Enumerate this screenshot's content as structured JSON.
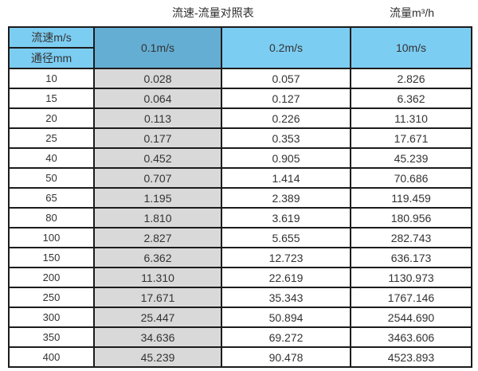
{
  "titles": {
    "left": "流速-流量对照表",
    "right": "流量m³/h"
  },
  "table": {
    "corner_top": "流速m/s",
    "corner_bottom": "通径mm",
    "columns": [
      "0.1m/s",
      "0.2m/s",
      "10m/s"
    ],
    "rows": [
      {
        "diameter": "10",
        "values": [
          "0.028",
          "0.057",
          "2.826"
        ]
      },
      {
        "diameter": "15",
        "values": [
          "0.064",
          "0.127",
          "6.362"
        ]
      },
      {
        "diameter": "20",
        "values": [
          "0.113",
          "0.226",
          "11.310"
        ]
      },
      {
        "diameter": "25",
        "values": [
          "0.177",
          "0.353",
          "17.671"
        ]
      },
      {
        "diameter": "40",
        "values": [
          "0.452",
          "0.905",
          "45.239"
        ]
      },
      {
        "diameter": "50",
        "values": [
          "0.707",
          "1.414",
          "70.686"
        ]
      },
      {
        "diameter": "65",
        "values": [
          "1.195",
          "2.389",
          "119.459"
        ]
      },
      {
        "diameter": "80",
        "values": [
          "1.810",
          "3.619",
          "180.956"
        ]
      },
      {
        "diameter": "100",
        "values": [
          "2.827",
          "5.655",
          "282.743"
        ]
      },
      {
        "diameter": "150",
        "values": [
          "6.362",
          "12.723",
          "636.173"
        ]
      },
      {
        "diameter": "200",
        "values": [
          "11.310",
          "22.619",
          "1130.973"
        ]
      },
      {
        "diameter": "250",
        "values": [
          "17.671",
          "35.343",
          "1767.146"
        ]
      },
      {
        "diameter": "300",
        "values": [
          "25.447",
          "50.894",
          "2544.690"
        ]
      },
      {
        "diameter": "350",
        "values": [
          "34.636",
          "69.272",
          "3463.606"
        ]
      },
      {
        "diameter": "400",
        "values": [
          "45.239",
          "90.478",
          "4523.893"
        ]
      }
    ]
  },
  "colors": {
    "header_light_blue": "#7ccdf2",
    "header_dark_blue": "#64aed3",
    "shaded_column_gray": "#d9d9d9",
    "border": "#1c1c1c",
    "text": "#333333"
  },
  "chart_data": {
    "type": "table",
    "title": "流速-流量对照表",
    "right_unit_label": "流量m³/h",
    "column_header_label": "流速m/s",
    "row_header_label": "通径mm",
    "columns": [
      "0.1m/s",
      "0.2m/s",
      "10m/s"
    ],
    "row_categories": [
      10,
      15,
      20,
      25,
      40,
      50,
      65,
      80,
      100,
      150,
      200,
      250,
      300,
      350,
      400
    ],
    "values": [
      [
        0.028,
        0.057,
        2.826
      ],
      [
        0.064,
        0.127,
        6.362
      ],
      [
        0.113,
        0.226,
        11.31
      ],
      [
        0.177,
        0.353,
        17.671
      ],
      [
        0.452,
        0.905,
        45.239
      ],
      [
        0.707,
        1.414,
        70.686
      ],
      [
        1.195,
        2.389,
        119.459
      ],
      [
        1.81,
        3.619,
        180.956
      ],
      [
        2.827,
        5.655,
        282.743
      ],
      [
        6.362,
        12.723,
        636.173
      ],
      [
        11.31,
        22.619,
        1130.973
      ],
      [
        17.671,
        35.343,
        1767.146
      ],
      [
        25.447,
        50.894,
        2544.69
      ],
      [
        34.636,
        69.272,
        3463.606
      ],
      [
        45.239,
        90.478,
        4523.893
      ]
    ]
  }
}
